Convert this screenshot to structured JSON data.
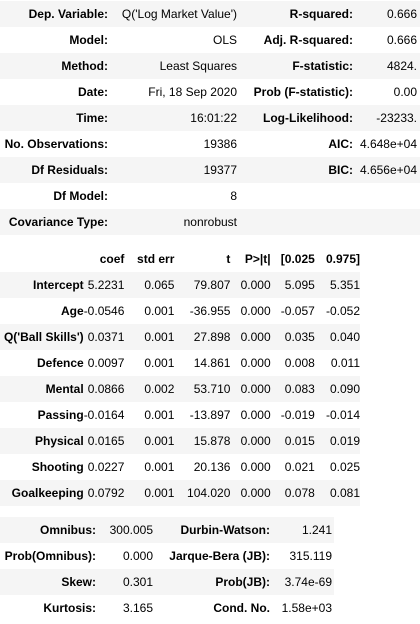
{
  "summary": [
    {
      "label": "Dep. Variable:",
      "value": "Q('Log Market Value')",
      "label2": "R-squared:",
      "value2": "0.666"
    },
    {
      "label": "Model:",
      "value": "OLS",
      "label2": "Adj. R-squared:",
      "value2": "0.666"
    },
    {
      "label": "Method:",
      "value": "Least Squares",
      "label2": "F-statistic:",
      "value2": "4824."
    },
    {
      "label": "Date:",
      "value": "Fri, 18 Sep 2020",
      "label2": "Prob (F-statistic):",
      "value2": "0.00"
    },
    {
      "label": "Time:",
      "value": "16:01:22",
      "label2": "Log-Likelihood:",
      "value2": "-23233."
    },
    {
      "label": "No. Observations:",
      "value": "19386",
      "label2": "AIC:",
      "value2": "4.648e+04"
    },
    {
      "label": "Df Residuals:",
      "value": "19377",
      "label2": "BIC:",
      "value2": "4.656e+04"
    },
    {
      "label": "Df Model:",
      "value": "8",
      "label2": "",
      "value2": ""
    },
    {
      "label": "Covariance Type:",
      "value": "nonrobust",
      "label2": "",
      "value2": ""
    }
  ],
  "coef_table": {
    "headers": [
      "",
      "coef",
      "std err",
      "t",
      "P>|t|",
      "[0.025",
      "0.975]"
    ],
    "rows": [
      [
        "Intercept",
        "5.2231",
        "0.065",
        "79.807",
        "0.000",
        "5.095",
        "5.351"
      ],
      [
        "Age",
        "-0.0546",
        "0.001",
        "-36.955",
        "0.000",
        "-0.057",
        "-0.052"
      ],
      [
        "Q('Ball Skills')",
        "0.0371",
        "0.001",
        "27.898",
        "0.000",
        "0.035",
        "0.040"
      ],
      [
        "Defence",
        "0.0097",
        "0.001",
        "14.861",
        "0.000",
        "0.008",
        "0.011"
      ],
      [
        "Mental",
        "0.0866",
        "0.002",
        "53.710",
        "0.000",
        "0.083",
        "0.090"
      ],
      [
        "Passing",
        "-0.0164",
        "0.001",
        "-13.897",
        "0.000",
        "-0.019",
        "-0.014"
      ],
      [
        "Physical",
        "0.0165",
        "0.001",
        "15.878",
        "0.000",
        "0.015",
        "0.019"
      ],
      [
        "Shooting",
        "0.0227",
        "0.001",
        "20.136",
        "0.000",
        "0.021",
        "0.025"
      ],
      [
        "Goalkeeping",
        "0.0792",
        "0.001",
        "104.020",
        "0.000",
        "0.078",
        "0.081"
      ]
    ]
  },
  "diagnostics": [
    {
      "label": "Omnibus:",
      "value": "300.005",
      "label2": "Durbin-Watson:",
      "value2": "1.241"
    },
    {
      "label": "Prob(Omnibus):",
      "value": "0.000",
      "label2": "Jarque-Bera (JB):",
      "value2": "315.119"
    },
    {
      "label": "Skew:",
      "value": "0.301",
      "label2": "Prob(JB):",
      "value2": "3.74e-69"
    },
    {
      "label": "Kurtosis:",
      "value": "3.165",
      "label2": "Cond. No.",
      "value2": "1.58e+03"
    }
  ]
}
